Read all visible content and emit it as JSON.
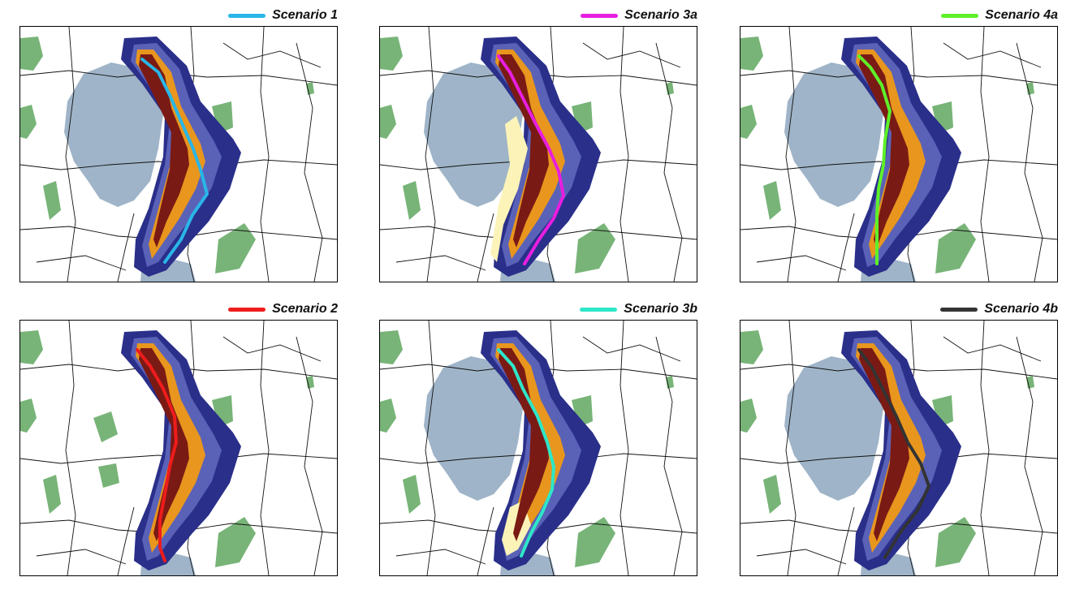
{
  "panels": [
    {
      "id": "s1",
      "label": "Scenario 1",
      "color": "#29b6e8",
      "variant": "a"
    },
    {
      "id": "s3a",
      "label": "Scenario 3a",
      "color": "#e81ee0",
      "variant": "b"
    },
    {
      "id": "s4a",
      "label": "Scenario 4a",
      "color": "#5ef02a",
      "variant": "c"
    },
    {
      "id": "s2",
      "label": "Scenario 2",
      "color": "#ee1c1c",
      "variant": "d"
    },
    {
      "id": "s3b",
      "label": "Scenario 3b",
      "color": "#2ee6c8",
      "variant": "e"
    },
    {
      "id": "s4b",
      "label": "Scenario 4b",
      "color": "#333333",
      "variant": "f"
    }
  ],
  "palette": {
    "lake": "#9fb4c8",
    "forest": "#78b478",
    "band_outer": "#2a2f8a",
    "band_mid": "#5a62b8",
    "band_light": "#fbf3b8",
    "band_orange": "#e8961e",
    "band_dark": "#7a1a14",
    "roads": "#111111"
  }
}
